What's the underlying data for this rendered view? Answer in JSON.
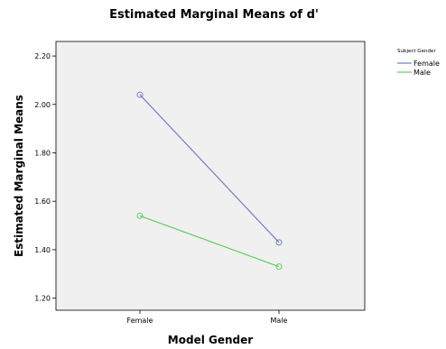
{
  "chart_data": {
    "type": "line",
    "title": "Estimated Marginal Means of d'",
    "xlabel": "Model Gender",
    "ylabel": "Estimated Marginal Means",
    "categories": [
      "Female",
      "Male"
    ],
    "ylim": [
      1.15,
      2.26
    ],
    "yticks": [
      "1.20",
      "1.40",
      "1.60",
      "1.80",
      "2.00",
      "2.20"
    ],
    "legend": {
      "title": "Subject Gender",
      "placement": "top-right"
    },
    "series": [
      {
        "name": "Female",
        "values": [
          2.04,
          1.43
        ],
        "color": "#6f7fc4"
      },
      {
        "name": "Male",
        "values": [
          1.54,
          1.33
        ],
        "color": "#5ccf5c"
      }
    ],
    "plot_background": "#f0f0f0",
    "grid": false
  }
}
